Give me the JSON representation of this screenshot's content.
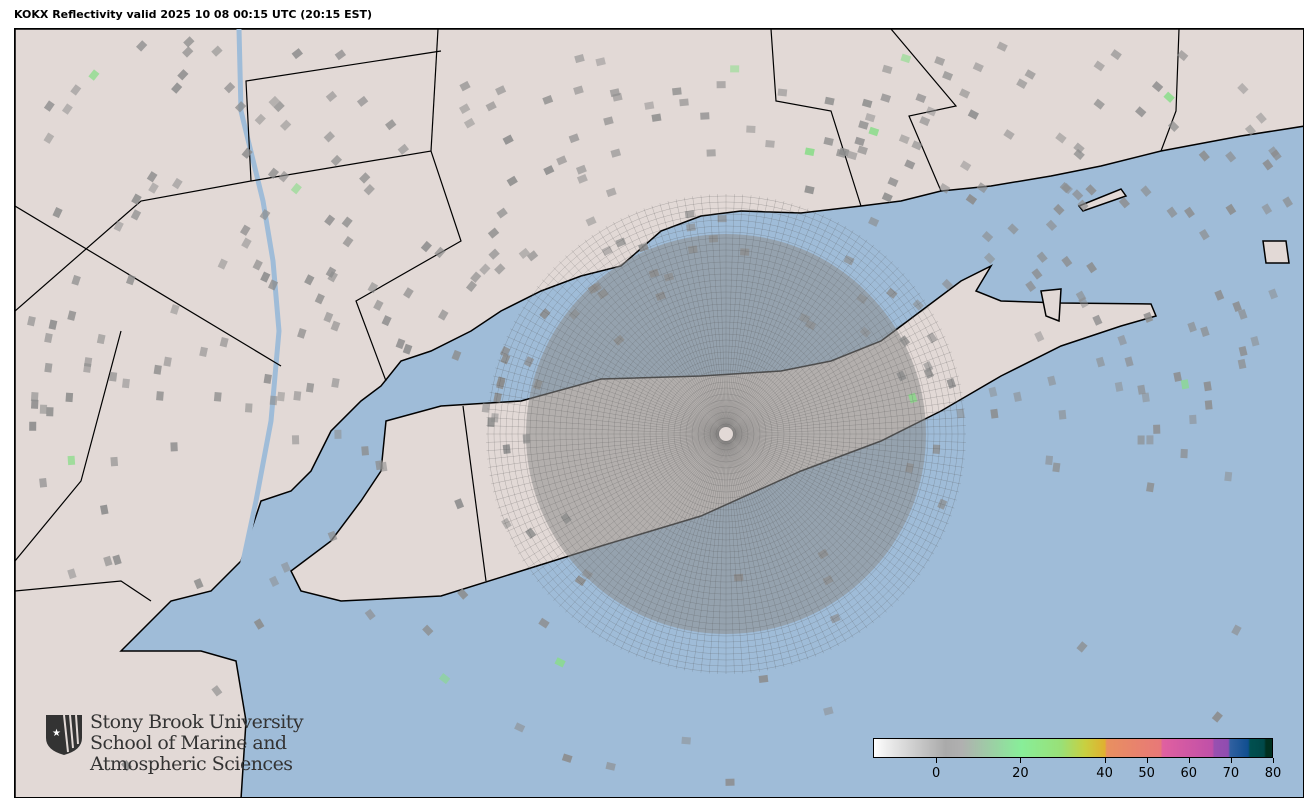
{
  "title": "KOKX Reflectivity valid 2025 10 08 00:15 UTC (20:15 EST)",
  "map": {
    "ocean_color": "#9fbcd8",
    "land_color": "#e2d9d6",
    "radar_site": "KOKX",
    "radar_echo_color": "#8c8c8c"
  },
  "colorbar": {
    "min": -15,
    "max": 80,
    "ticks": [
      "0",
      "20",
      "40",
      "50",
      "60",
      "70",
      "80"
    ],
    "tick_values": [
      0,
      20,
      40,
      50,
      60,
      70,
      80
    ]
  },
  "logo": {
    "line1": "Stony Brook University",
    "line2": "School of Marine and",
    "line3": "Atmospheric Sciences"
  }
}
